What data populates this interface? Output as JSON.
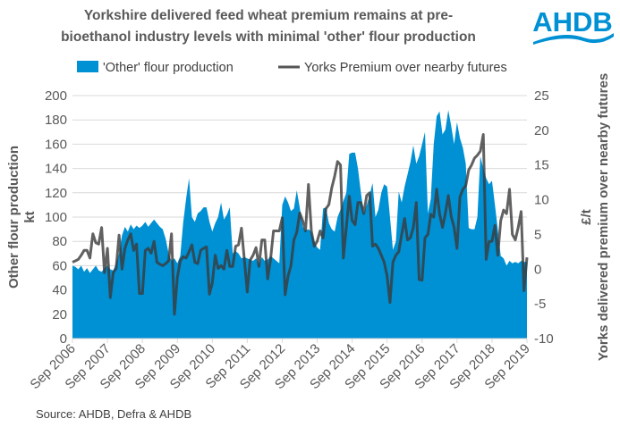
{
  "title_line1": "Yorkshire delivered feed wheat premium remains at pre-",
  "title_line2": "bioethanol industry levels with minimal 'other' flour production",
  "logo_text": "AHDB",
  "source": "Source: AHDB, Defra & AHDB",
  "chart_data": {
    "type": "area+line",
    "title": "Yorkshire delivered feed wheat premium remains at pre-bioethanol industry levels with minimal 'other' flour production",
    "x_start": "Sep 2006",
    "x_frequency": "monthly",
    "x_tick_labels": [
      "Sep 2006",
      "Sep 2007",
      "Sep 2008",
      "Sep 2009",
      "Sep 2010",
      "Sep 2011",
      "Sep 2012",
      "Sep 2013",
      "Sep 2014",
      "Sep 2015",
      "Sep 2016",
      "Sep 2017",
      "Sep 2018",
      "Sep 2019"
    ],
    "left_axis": {
      "label_line1": "Other flour production",
      "label_line2": "kt",
      "ylim": [
        0,
        200
      ],
      "ticks": [
        "0",
        "20",
        "40",
        "60",
        "80",
        "100",
        "120",
        "140",
        "160",
        "180",
        "200"
      ]
    },
    "right_axis": {
      "label_line1": "Yorks delivered premium over nearby futures",
      "label_line2": "£/t",
      "ylim": [
        -10,
        25
      ],
      "ticks": [
        "-10",
        "-5",
        "0",
        "5",
        "10",
        "15",
        "20",
        "25"
      ]
    },
    "grid": true,
    "legend_position": "top",
    "series": [
      {
        "name": "'Other' flour production",
        "type": "area",
        "axis": "left",
        "color": "#0090D4",
        "values": [
          60,
          59,
          57,
          60,
          55,
          58,
          54,
          57,
          60,
          56,
          55,
          58,
          60,
          57,
          56,
          62,
          70,
          85,
          92,
          88,
          94,
          90,
          93,
          91,
          93,
          96,
          92,
          95,
          98,
          95,
          92,
          90,
          82,
          70,
          64,
          66,
          62,
          68,
          95,
          115,
          132,
          100,
          96,
          103,
          105,
          108,
          108,
          96,
          88,
          95,
          100,
          112,
          98,
          102,
          108,
          70,
          72,
          70,
          66,
          67,
          66,
          65,
          64,
          66,
          62,
          67,
          64,
          65,
          68,
          66,
          64,
          62,
          110,
          117,
          112,
          105,
          107,
          122,
          108,
          92,
          89,
          90,
          88,
          80,
          75,
          73,
          107,
          108,
          95,
          90,
          88,
          100,
          106,
          113,
          120,
          152,
          153,
          153,
          140,
          120,
          103,
          110,
          118,
          128,
          100,
          106,
          120,
          127,
          125,
          100,
          73,
          80,
          121,
          112,
          125,
          135,
          145,
          159,
          144,
          150,
          160,
          170,
          103,
          115,
          160,
          183,
          187,
          168,
          172,
          188,
          175,
          160,
          178,
          165,
          157,
          144,
          91,
          90,
          90,
          100,
          150,
          140,
          132,
          127,
          130,
          110,
          90,
          68,
          66,
          60,
          64,
          62,
          63,
          62,
          64,
          63,
          63
        ]
      },
      {
        "name": "Yorks Premium over nearby futures",
        "type": "line",
        "axis": "right",
        "color": "#555555",
        "values": [
          1.0,
          1.2,
          1.4,
          2.0,
          2.7,
          2.7,
          1.6,
          5.1,
          3.8,
          3.6,
          6.0,
          -0.5,
          3.0,
          -4.1,
          -0.5,
          0.1,
          4.9,
          0,
          3.0,
          4.2,
          5.1,
          2.7,
          3.6,
          -3.5,
          -3.5,
          2.7,
          3.0,
          2.3,
          4.0,
          1.0,
          0.7,
          0.5,
          0.8,
          1.2,
          5.1,
          -6.5,
          -1.2,
          1.2,
          1.8,
          1.6,
          2.5,
          3.5,
          1.0,
          0.8,
          2.7,
          3.0,
          3.2,
          -3.6,
          -2.0,
          2.0,
          0.1,
          0.5,
          0,
          2.7,
          0.4,
          0.4,
          3.3,
          3.5,
          5.9,
          1.4,
          -3.3,
          1.3,
          2.0,
          3.1,
          0.4,
          4.2,
          4.2,
          -1.4,
          1.4,
          5.5,
          5.5,
          5.5,
          7.4,
          -3.7,
          -1.0,
          0.5,
          4.2,
          5.3,
          8.1,
          7.0,
          5.5,
          12.2,
          5.5,
          3.3,
          4.0,
          5.5,
          4.5,
          8.7,
          9.3,
          11.7,
          13.4,
          15.5,
          15.0,
          1.6,
          6.0,
          10.5,
          7.0,
          6.4,
          9.6,
          9.6,
          8.0,
          10.6,
          11.0,
          3.3,
          3.6,
          3.0,
          2.0,
          1.0,
          -1.0,
          -4.8,
          1.0,
          2.0,
          2.5,
          5.0,
          7.3,
          4.2,
          4.5,
          6.0,
          9.6,
          -1.5,
          -1.6,
          4.5,
          5.0,
          7.9,
          7.5,
          11.5,
          8.0,
          6.0,
          8.0,
          10.6,
          7.6,
          6.0,
          3.0,
          10.4,
          11.5,
          12.0,
          14.3,
          15.0,
          16.0,
          16.4,
          17.0,
          19.4,
          1.4,
          4.0,
          4.0,
          6.3,
          2.0,
          7.0,
          8.5,
          8.0,
          11.5,
          5.0,
          4.2,
          6.0,
          8.3,
          -3.1,
          1.7
        ]
      }
    ]
  }
}
